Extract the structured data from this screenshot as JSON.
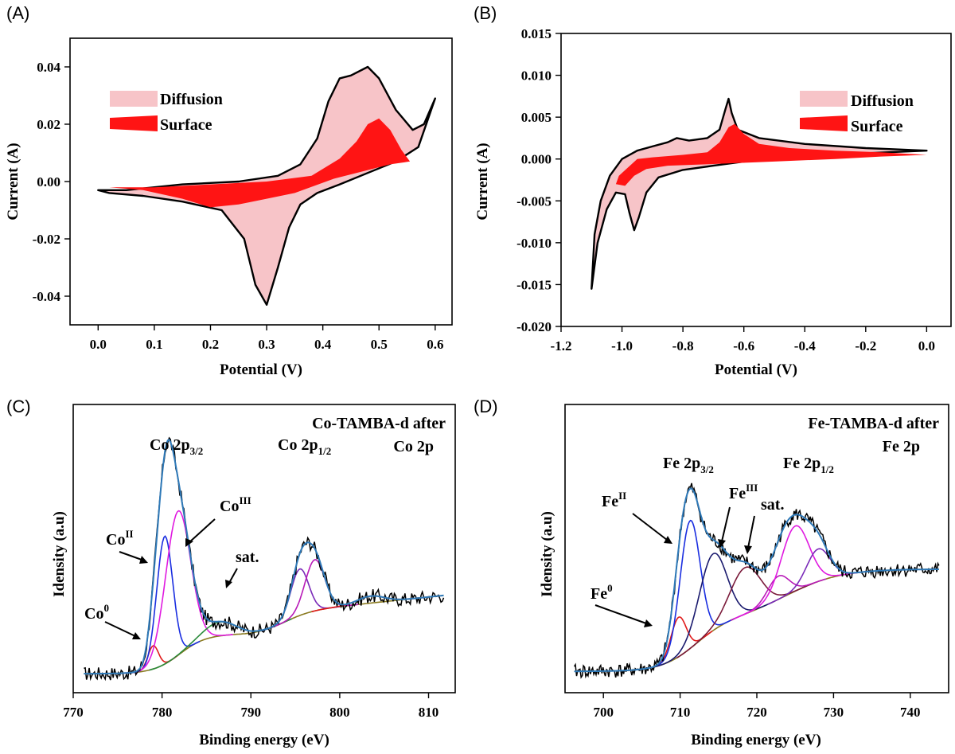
{
  "chart_data": [
    {
      "panel": "(A)",
      "type": "area",
      "xlabel": "Potential (V)",
      "ylabel": "Current (A)",
      "xlim": [
        -0.05,
        0.63
      ],
      "ylim": [
        -0.05,
        0.05
      ],
      "xticks": [
        "0.0",
        "0.1",
        "0.2",
        "0.3",
        "0.4",
        "0.5",
        "0.6"
      ],
      "yticks": [
        "0.04",
        "0.02",
        "0.00",
        "-0.02",
        "-0.04"
      ],
      "legend": [
        "Diffusion",
        "Surface"
      ],
      "legend_position": "upper-left",
      "colors": {
        "Diffusion": "#f7c4c8",
        "Surface": "#ff1414",
        "outline": "#000000"
      },
      "series": [
        {
          "name": "Diffusion",
          "anodic": [
            [
              0.0,
              -0.003
            ],
            [
              0.05,
              -0.003
            ],
            [
              0.15,
              -0.001
            ],
            [
              0.25,
              0.0
            ],
            [
              0.32,
              0.002
            ],
            [
              0.36,
              0.006
            ],
            [
              0.39,
              0.015
            ],
            [
              0.41,
              0.028
            ],
            [
              0.43,
              0.036
            ],
            [
              0.45,
              0.037
            ],
            [
              0.48,
              0.04
            ],
            [
              0.5,
              0.036
            ],
            [
              0.53,
              0.025
            ],
            [
              0.56,
              0.018
            ],
            [
              0.58,
              0.02
            ],
            [
              0.6,
              0.029
            ]
          ],
          "cathodic": [
            [
              0.6,
              0.029
            ],
            [
              0.57,
              0.012
            ],
            [
              0.53,
              0.007
            ],
            [
              0.48,
              0.003
            ],
            [
              0.43,
              -0.001
            ],
            [
              0.39,
              -0.004
            ],
            [
              0.36,
              -0.008
            ],
            [
              0.34,
              -0.016
            ],
            [
              0.32,
              -0.03
            ],
            [
              0.3,
              -0.043
            ],
            [
              0.28,
              -0.036
            ],
            [
              0.26,
              -0.02
            ],
            [
              0.22,
              -0.01
            ],
            [
              0.15,
              -0.007
            ],
            [
              0.08,
              -0.005
            ],
            [
              0.02,
              -0.004
            ],
            [
              0.0,
              -0.003
            ]
          ]
        },
        {
          "name": "Surface",
          "anodic": [
            [
              0.02,
              -0.002
            ],
            [
              0.1,
              -0.002
            ],
            [
              0.2,
              -0.001
            ],
            [
              0.3,
              0.0
            ],
            [
              0.38,
              0.002
            ],
            [
              0.43,
              0.008
            ],
            [
              0.46,
              0.014
            ],
            [
              0.48,
              0.02
            ],
            [
              0.5,
              0.022
            ],
            [
              0.52,
              0.018
            ],
            [
              0.54,
              0.011
            ],
            [
              0.555,
              0.007
            ]
          ],
          "cathodic": [
            [
              0.555,
              0.007
            ],
            [
              0.52,
              0.006
            ],
            [
              0.48,
              0.004
            ],
            [
              0.42,
              0.001
            ],
            [
              0.35,
              -0.004
            ],
            [
              0.3,
              -0.006
            ],
            [
              0.25,
              -0.008
            ],
            [
              0.2,
              -0.009
            ],
            [
              0.15,
              -0.006
            ],
            [
              0.08,
              -0.003
            ],
            [
              0.02,
              -0.002
            ]
          ]
        }
      ]
    },
    {
      "panel": "(B)",
      "type": "area",
      "xlabel": "Potential (V)",
      "ylabel": "Current (A)",
      "xlim": [
        -1.2,
        0.08
      ],
      "ylim": [
        -0.02,
        0.015
      ],
      "xticks": [
        "-1.2",
        "-1.0",
        "-0.8",
        "-0.6",
        "-0.4",
        "-0.2",
        "0.0"
      ],
      "yticks": [
        "0.015",
        "0.010",
        "0.005",
        "0.000",
        "-0.005",
        "-0.010",
        "-0.015",
        "-0.020"
      ],
      "legend": [
        "Diffusion",
        "Surface"
      ],
      "legend_position": "upper-right",
      "colors": {
        "Diffusion": "#f7c4c8",
        "Surface": "#ff1414",
        "outline": "#000000"
      },
      "series": [
        {
          "name": "Diffusion",
          "anodic": [
            [
              -1.1,
              -0.0155
            ],
            [
              -1.09,
              -0.009
            ],
            [
              -1.07,
              -0.005
            ],
            [
              -1.04,
              -0.002
            ],
            [
              -1.0,
              0.0
            ],
            [
              -0.95,
              0.001
            ],
            [
              -0.9,
              0.0015
            ],
            [
              -0.85,
              0.002
            ],
            [
              -0.82,
              0.0025
            ],
            [
              -0.78,
              0.0022
            ],
            [
              -0.72,
              0.0025
            ],
            [
              -0.68,
              0.0035
            ],
            [
              -0.66,
              0.006
            ],
            [
              -0.65,
              0.0072
            ],
            [
              -0.64,
              0.0055
            ],
            [
              -0.62,
              0.0035
            ],
            [
              -0.55,
              0.0025
            ],
            [
              -0.4,
              0.0018
            ],
            [
              -0.2,
              0.0013
            ],
            [
              0.0,
              0.001
            ]
          ],
          "cathodic": [
            [
              0.0,
              0.001
            ],
            [
              -0.2,
              0.0007
            ],
            [
              -0.4,
              0.0004
            ],
            [
              -0.6,
              -0.0003
            ],
            [
              -0.7,
              -0.0008
            ],
            [
              -0.8,
              -0.0013
            ],
            [
              -0.88,
              -0.0022
            ],
            [
              -0.92,
              -0.004
            ],
            [
              -0.945,
              -0.007
            ],
            [
              -0.96,
              -0.0085
            ],
            [
              -0.975,
              -0.0065
            ],
            [
              -0.99,
              -0.0042
            ],
            [
              -1.02,
              -0.004
            ],
            [
              -1.05,
              -0.006
            ],
            [
              -1.08,
              -0.01
            ],
            [
              -1.1,
              -0.0155
            ]
          ]
        },
        {
          "name": "Surface",
          "anodic": [
            [
              -1.02,
              -0.003
            ],
            [
              -1.01,
              -0.002
            ],
            [
              -0.98,
              -0.001
            ],
            [
              -0.95,
              0.0
            ],
            [
              -0.9,
              0.0002
            ],
            [
              -0.8,
              0.0005
            ],
            [
              -0.72,
              0.0008
            ],
            [
              -0.68,
              0.002
            ],
            [
              -0.65,
              0.0038
            ],
            [
              -0.63,
              0.0042
            ],
            [
              -0.6,
              0.003
            ],
            [
              -0.55,
              0.0018
            ],
            [
              -0.45,
              0.0013
            ],
            [
              -0.3,
              0.001
            ],
            [
              -0.15,
              0.0008
            ],
            [
              0.0,
              0.0005
            ]
          ],
          "cathodic": [
            [
              0.0,
              0.0005
            ],
            [
              -0.15,
              0.0003
            ],
            [
              -0.3,
              0.0
            ],
            [
              -0.5,
              -0.0003
            ],
            [
              -0.7,
              -0.0006
            ],
            [
              -0.85,
              -0.0008
            ],
            [
              -0.92,
              -0.0012
            ],
            [
              -0.96,
              -0.002
            ],
            [
              -0.99,
              -0.0032
            ],
            [
              -1.02,
              -0.003
            ]
          ]
        }
      ]
    },
    {
      "panel": "(C)",
      "type": "line",
      "xlabel": "Binding energy (eV)",
      "ylabel": "Idensity (a.u)",
      "xlim": [
        770,
        813
      ],
      "xticks": [
        "770",
        "780",
        "790",
        "800",
        "810"
      ],
      "title_lines": [
        "Co-TAMBA-d after",
        "Co 2p"
      ],
      "annotations": [
        {
          "text": "Co 2p",
          "sub": "3/2"
        },
        {
          "text": "Co 2p",
          "sub": "1/2"
        },
        {
          "text": "Co",
          "sup": "III"
        },
        {
          "text": "Co",
          "sup": "II"
        },
        {
          "text": "Co",
          "sup": "0"
        },
        {
          "text": "sat."
        }
      ],
      "series_colors": {
        "raw": "#000000",
        "envelope": "#2e79b8",
        "background": "#8a7a1f",
        "Co0": "#e01a1a",
        "CoII": "#1a2ee0",
        "CoIII": "#e01ae0",
        "sat": "#2a8a3a",
        "Co2p1/2_a": "#7a2ab8",
        "Co2p1/2_b": "#b81ab8"
      },
      "peaks": [
        {
          "name": "Co0",
          "center": 779.0,
          "height": 0.1
        },
        {
          "name": "CoII",
          "center": 780.3,
          "height": 0.55
        },
        {
          "name": "CoIII",
          "center": 781.8,
          "height": 0.62
        },
        {
          "name": "sat",
          "center": 786.5,
          "height": 0.06
        },
        {
          "name": "Co2p1/2_a",
          "center": 795.5,
          "height": 0.2
        },
        {
          "name": "Co2p1/2_b",
          "center": 797.2,
          "height": 0.22
        },
        {
          "name": "sat2",
          "center": 803.5,
          "height": 0.03
        }
      ]
    },
    {
      "panel": "(D)",
      "type": "line",
      "xlabel": "Binding energy (eV)",
      "ylabel": "Idensity (a.u)",
      "xlim": [
        695,
        745
      ],
      "xticks": [
        "700",
        "710",
        "720",
        "730",
        "740"
      ],
      "title_lines": [
        "Fe-TAMBA-d after",
        "Fe 2p"
      ],
      "annotations": [
        {
          "text": "Fe 2p",
          "sub": "3/2"
        },
        {
          "text": "Fe 2p",
          "sub": "1/2"
        },
        {
          "text": "Fe",
          "sup": "III"
        },
        {
          "text": "Fe",
          "sup": "II"
        },
        {
          "text": "Fe",
          "sup": "0"
        },
        {
          "text": "sat."
        }
      ],
      "series_colors": {
        "raw": "#000000",
        "envelope": "#2e79b8",
        "background": "#8a7a1f",
        "Fe0": "#e01a1a",
        "FeII": "#1a2ee0",
        "FeIII": "#1a1a6e",
        "sat": "#7a1a3a",
        "Fe2p1/2_a": "#b81ab8",
        "Fe2p1/2_b": "#e01ae0",
        "Fe2p1/2_c": "#7a2ab8"
      },
      "peaks": [
        {
          "name": "Fe0",
          "center": 709.8,
          "height": 0.17
        },
        {
          "name": "FeII",
          "center": 711.3,
          "height": 0.55
        },
        {
          "name": "FeIII",
          "center": 714.3,
          "height": 0.33
        },
        {
          "name": "sat",
          "center": 718.5,
          "height": 0.2
        },
        {
          "name": "Fe2p1/2_a",
          "center": 722.8,
          "height": 0.1
        },
        {
          "name": "Fe2p1/2_b",
          "center": 725.0,
          "height": 0.28
        },
        {
          "name": "Fe2p1/2_c",
          "center": 728.0,
          "height": 0.14
        }
      ]
    }
  ]
}
